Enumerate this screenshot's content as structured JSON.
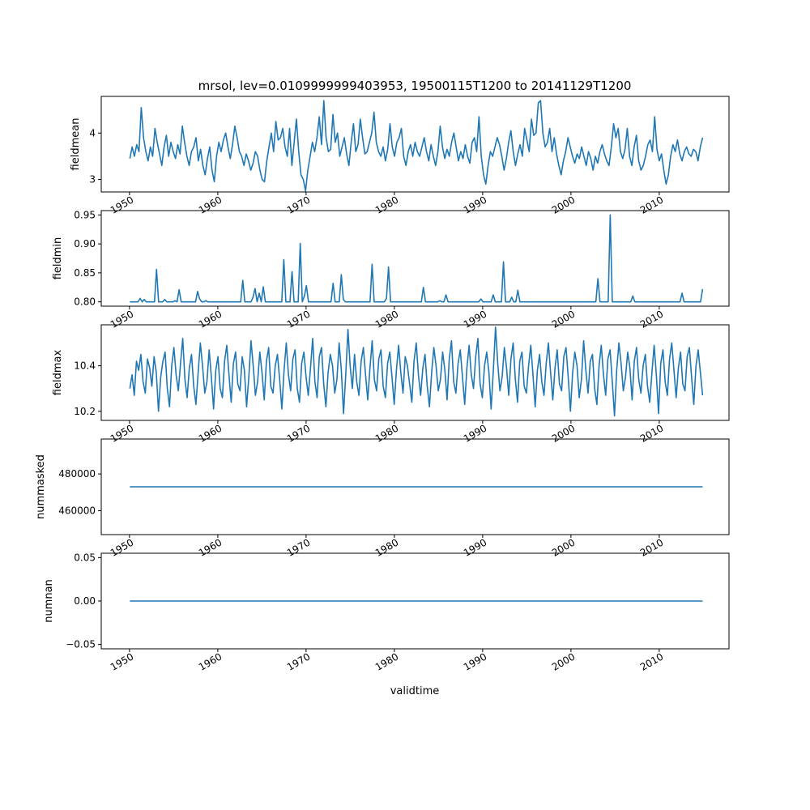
{
  "title": "mrsol, lev=0.0109999999403953, 19500115T1200 to 20141129T1200",
  "colors": {
    "series": "#1f77b4",
    "axes": "#000000",
    "background": "#ffffff"
  },
  "chart_data": [
    {
      "type": "line",
      "ylabel": "fieldmean",
      "xlim": [
        1946.8,
        2017.9
      ],
      "ylim": [
        2.73,
        4.79
      ],
      "x_ticks": [
        1950,
        1960,
        1970,
        1980,
        1990,
        2000,
        2010
      ],
      "x_tick_labels": [
        "1950",
        "1960",
        "1970",
        "1980",
        "1990",
        "2000",
        "2010"
      ],
      "y_ticks": [
        3,
        4
      ],
      "y_tick_labels": [
        "3",
        "4"
      ],
      "x_range": [
        1950.04,
        2014.91
      ],
      "series": [
        {
          "values": [
            3.45,
            3.7,
            3.5,
            3.75,
            3.6,
            4.55,
            3.9,
            3.6,
            3.4,
            3.7,
            3.5,
            4.1,
            3.8,
            3.55,
            3.3,
            3.7,
            3.95,
            3.5,
            3.8,
            3.6,
            3.45,
            3.75,
            3.55,
            4.15,
            3.8,
            3.5,
            3.3,
            3.6,
            3.7,
            3.9,
            3.4,
            3.65,
            3.3,
            3.1,
            3.45,
            3.7,
            3.2,
            2.95,
            3.5,
            3.8,
            3.6,
            3.85,
            4.0,
            3.7,
            3.45,
            3.75,
            4.15,
            3.9,
            3.6,
            3.5,
            3.3,
            3.55,
            3.4,
            3.2,
            3.35,
            3.6,
            3.5,
            3.2,
            3.0,
            2.95,
            3.4,
            3.7,
            4.0,
            3.6,
            4.25,
            3.85,
            3.9,
            4.1,
            3.7,
            3.5,
            4.1,
            3.3,
            3.8,
            4.3,
            3.6,
            3.1,
            3.0,
            2.75,
            3.2,
            3.5,
            3.8,
            3.6,
            3.9,
            4.35,
            3.75,
            4.7,
            3.9,
            3.6,
            3.65,
            4.4,
            3.8,
            4.0,
            3.5,
            3.7,
            3.9,
            3.55,
            3.3,
            3.8,
            4.2,
            3.6,
            3.75,
            4.3,
            3.9,
            3.55,
            3.6,
            3.8,
            4.0,
            4.45,
            3.8,
            3.6,
            3.5,
            3.7,
            3.4,
            3.65,
            4.2,
            3.7,
            3.5,
            3.8,
            3.9,
            4.1,
            3.5,
            3.3,
            3.6,
            3.75,
            3.5,
            3.8,
            3.6,
            3.5,
            3.7,
            3.9,
            3.6,
            3.4,
            3.75,
            3.5,
            3.3,
            3.6,
            4.15,
            3.7,
            3.45,
            3.65,
            3.5,
            3.8,
            4.0,
            3.7,
            3.4,
            3.6,
            3.45,
            3.75,
            3.5,
            3.35,
            3.8,
            3.9,
            3.6,
            4.35,
            3.5,
            3.1,
            2.9,
            3.3,
            3.6,
            3.5,
            3.7,
            3.9,
            3.75,
            3.5,
            3.2,
            3.45,
            3.8,
            4.05,
            3.6,
            3.3,
            3.55,
            3.75,
            3.5,
            4.1,
            3.85,
            3.6,
            4.3,
            3.95,
            4.0,
            4.65,
            4.7,
            4.0,
            3.7,
            3.8,
            4.1,
            3.6,
            3.9,
            3.55,
            3.3,
            3.1,
            3.4,
            3.6,
            3.9,
            3.7,
            3.5,
            3.35,
            3.55,
            3.45,
            3.7,
            3.5,
            3.3,
            3.6,
            3.45,
            3.2,
            3.5,
            3.35,
            3.6,
            3.75,
            3.55,
            3.4,
            3.3,
            3.7,
            4.2,
            3.9,
            4.1,
            3.6,
            3.45,
            3.65,
            4.1,
            3.5,
            3.3,
            3.7,
            3.95,
            3.4,
            3.2,
            3.3,
            3.5,
            3.75,
            3.85,
            3.6,
            4.35,
            3.65,
            3.4,
            3.55,
            3.2,
            2.9,
            3.1,
            3.5,
            3.75,
            3.6,
            3.85,
            3.55,
            3.4,
            3.6,
            3.7,
            3.55,
            3.5,
            3.65,
            3.6,
            3.4,
            3.7,
            3.9
          ]
        }
      ]
    },
    {
      "type": "line",
      "ylabel": "fieldmin",
      "xlim": [
        1946.8,
        2017.9
      ],
      "ylim": [
        0.7925,
        0.9575
      ],
      "x_ticks": [
        1950,
        1960,
        1970,
        1980,
        1990,
        2000,
        2010
      ],
      "x_tick_labels": [
        "1950",
        "1960",
        "1970",
        "1980",
        "1990",
        "2000",
        "2010"
      ],
      "y_ticks": [
        0.8,
        0.85,
        0.9,
        0.95
      ],
      "y_tick_labels": [
        "0.80",
        "0.85",
        "0.90",
        "0.95"
      ],
      "x_range": [
        1950.04,
        2014.91
      ],
      "series": [
        {
          "values": [
            0.8,
            0.8,
            0.8,
            0.8,
            0.8,
            0.806,
            0.8,
            0.804,
            0.8,
            0.8,
            0.8,
            0.8,
            0.8,
            0.856,
            0.8,
            0.8,
            0.8,
            0.804,
            0.8,
            0.8,
            0.8,
            0.8,
            0.802,
            0.8,
            0.821,
            0.8,
            0.8,
            0.8,
            0.8,
            0.8,
            0.8,
            0.8,
            0.8,
            0.818,
            0.805,
            0.8,
            0.8,
            0.802,
            0.8,
            0.8,
            0.8,
            0.8,
            0.8,
            0.8,
            0.8,
            0.8,
            0.8,
            0.8,
            0.8,
            0.8,
            0.8,
            0.8,
            0.8,
            0.8,
            0.8,
            0.837,
            0.8,
            0.8,
            0.8,
            0.8,
            0.808,
            0.823,
            0.8,
            0.815,
            0.8,
            0.826,
            0.8,
            0.8,
            0.8,
            0.8,
            0.8,
            0.8,
            0.8,
            0.8,
            0.8,
            0.873,
            0.8,
            0.8,
            0.8,
            0.852,
            0.8,
            0.8,
            0.8,
            0.901,
            0.8,
            0.81,
            0.828,
            0.8,
            0.8,
            0.8,
            0.8,
            0.8,
            0.8,
            0.8,
            0.8,
            0.8,
            0.8,
            0.8,
            0.8,
            0.832,
            0.8,
            0.8,
            0.8,
            0.847,
            0.804,
            0.8,
            0.8,
            0.8,
            0.8,
            0.8,
            0.8,
            0.8,
            0.8,
            0.8,
            0.8,
            0.8,
            0.8,
            0.8,
            0.865,
            0.8,
            0.8,
            0.8,
            0.8,
            0.8,
            0.8,
            0.806,
            0.86,
            0.8,
            0.8,
            0.8,
            0.8,
            0.8,
            0.8,
            0.8,
            0.8,
            0.8,
            0.8,
            0.8,
            0.8,
            0.8,
            0.8,
            0.8,
            0.8,
            0.825,
            0.8,
            0.8,
            0.8,
            0.8,
            0.8,
            0.8,
            0.8,
            0.802,
            0.8,
            0.8,
            0.812,
            0.8,
            0.8,
            0.8,
            0.8,
            0.8,
            0.8,
            0.8,
            0.8,
            0.8,
            0.8,
            0.8,
            0.8,
            0.8,
            0.8,
            0.8,
            0.8,
            0.805,
            0.8,
            0.8,
            0.8,
            0.8,
            0.8,
            0.812,
            0.8,
            0.8,
            0.8,
            0.8,
            0.869,
            0.8,
            0.8,
            0.8,
            0.808,
            0.8,
            0.8,
            0.82,
            0.8,
            0.8,
            0.8,
            0.8,
            0.8,
            0.8,
            0.8,
            0.8,
            0.8,
            0.8,
            0.8,
            0.8,
            0.8,
            0.8,
            0.8,
            0.8,
            0.8,
            0.8,
            0.8,
            0.8,
            0.8,
            0.8,
            0.8,
            0.8,
            0.8,
            0.8,
            0.8,
            0.8,
            0.8,
            0.8,
            0.8,
            0.8,
            0.8,
            0.8,
            0.8,
            0.8,
            0.8,
            0.8,
            0.84,
            0.8,
            0.8,
            0.8,
            0.8,
            0.8,
            0.95,
            0.8,
            0.8,
            0.8,
            0.8,
            0.8,
            0.8,
            0.8,
            0.8,
            0.8,
            0.8,
            0.81,
            0.8,
            0.8,
            0.8,
            0.8,
            0.8,
            0.8,
            0.8,
            0.8,
            0.8,
            0.8,
            0.8,
            0.8,
            0.8,
            0.8,
            0.8,
            0.8,
            0.8,
            0.8,
            0.8,
            0.8,
            0.8,
            0.8,
            0.8,
            0.815,
            0.8,
            0.8,
            0.8,
            0.8,
            0.8,
            0.8,
            0.8,
            0.8,
            0.8,
            0.822
          ]
        }
      ]
    },
    {
      "type": "line",
      "ylabel": "fieldmax",
      "xlim": [
        1946.8,
        2017.9
      ],
      "ylim": [
        10.16,
        10.58
      ],
      "x_ticks": [
        1950,
        1960,
        1970,
        1980,
        1990,
        2000,
        2010
      ],
      "x_tick_labels": [
        "1950",
        "1960",
        "1970",
        "1980",
        "1990",
        "2000",
        "2010"
      ],
      "y_ticks": [
        10.2,
        10.4
      ],
      "y_tick_labels": [
        "10.2",
        "10.4"
      ],
      "x_range": [
        1950.04,
        2014.91
      ],
      "series": [
        {
          "values": [
            10.3,
            10.36,
            10.27,
            10.42,
            10.38,
            10.45,
            10.33,
            10.28,
            10.43,
            10.39,
            10.31,
            10.44,
            10.37,
            10.2,
            10.35,
            10.42,
            10.46,
            10.3,
            10.22,
            10.4,
            10.48,
            10.36,
            10.29,
            10.41,
            10.52,
            10.34,
            10.26,
            10.39,
            10.45,
            10.31,
            10.23,
            10.37,
            10.5,
            10.4,
            10.28,
            10.33,
            10.47,
            10.35,
            10.21,
            10.38,
            10.44,
            10.3,
            10.26,
            10.42,
            10.49,
            10.36,
            10.24,
            10.41,
            10.46,
            10.32,
            10.29,
            10.44,
            10.38,
            10.22,
            10.35,
            10.51,
            10.4,
            10.27,
            10.33,
            10.46,
            10.37,
            10.25,
            10.42,
            10.48,
            10.31,
            10.28,
            10.4,
            10.45,
            10.34,
            10.21,
            10.38,
            10.5,
            10.36,
            10.29,
            10.43,
            10.47,
            10.3,
            10.24,
            10.41,
            10.46,
            10.35,
            10.27,
            10.39,
            10.52,
            10.33,
            10.26,
            10.44,
            10.48,
            10.32,
            10.22,
            10.37,
            10.45,
            10.4,
            10.28,
            10.34,
            10.5,
            10.38,
            10.19,
            10.36,
            10.56,
            10.4,
            10.3,
            10.45,
            10.33,
            10.27,
            10.42,
            10.48,
            10.36,
            10.25,
            10.39,
            10.51,
            10.34,
            10.29,
            10.43,
            10.47,
            10.31,
            10.26,
            10.41,
            10.46,
            10.35,
            10.23,
            10.38,
            10.49,
            10.37,
            10.28,
            10.44,
            10.4,
            10.32,
            10.24,
            10.42,
            10.5,
            10.36,
            10.27,
            10.39,
            10.45,
            10.31,
            10.22,
            10.37,
            10.48,
            10.4,
            10.29,
            10.34,
            10.46,
            10.38,
            10.25,
            10.43,
            10.51,
            10.33,
            10.28,
            10.41,
            10.47,
            10.35,
            10.23,
            10.39,
            10.49,
            10.36,
            10.3,
            10.44,
            10.52,
            10.32,
            10.26,
            10.4,
            10.46,
            10.37,
            10.21,
            10.38,
            10.57,
            10.41,
            10.29,
            10.35,
            10.48,
            10.39,
            10.27,
            10.43,
            10.5,
            10.34,
            10.24,
            10.42,
            10.46,
            10.31,
            10.28,
            10.4,
            10.49,
            10.36,
            10.22,
            10.38,
            10.45,
            10.33,
            10.27,
            10.41,
            10.5,
            10.37,
            10.25,
            10.39,
            10.47,
            10.32,
            10.29,
            10.44,
            10.48,
            10.35,
            10.2,
            10.37,
            10.46,
            10.4,
            10.26,
            10.34,
            10.51,
            10.38,
            10.28,
            10.42,
            10.45,
            10.3,
            10.23,
            10.4,
            10.49,
            10.36,
            10.27,
            10.43,
            10.47,
            10.33,
            10.18,
            10.38,
            10.5,
            10.41,
            10.29,
            10.35,
            10.46,
            10.39,
            10.25,
            10.42,
            10.48,
            10.34,
            10.28,
            10.4,
            10.45,
            10.31,
            10.24,
            10.37,
            10.49,
            10.36,
            10.19,
            10.41,
            10.47,
            10.33,
            10.27,
            10.43,
            10.5,
            10.38,
            10.26,
            10.39,
            10.46,
            10.32,
            10.29,
            10.44,
            10.48,
            10.35,
            10.23,
            10.4,
            10.47,
            10.37,
            10.27
          ]
        }
      ]
    },
    {
      "type": "line",
      "ylabel": "nummasked",
      "xlim": [
        1946.8,
        2017.9
      ],
      "ylim": [
        447000,
        499000
      ],
      "x_ticks": [
        1950,
        1960,
        1970,
        1980,
        1990,
        2000,
        2010
      ],
      "x_tick_labels": [
        "1950",
        "1960",
        "1970",
        "1980",
        "1990",
        "2000",
        "2010"
      ],
      "y_ticks": [
        460000,
        480000
      ],
      "y_tick_labels": [
        "460000",
        "480000"
      ],
      "x_range": [
        1950.04,
        2014.91
      ],
      "series": [
        {
          "values": [
            473000,
            473000
          ]
        }
      ]
    },
    {
      "type": "line",
      "ylabel": "numnan",
      "xlabel": "validtime",
      "xlim": [
        1946.8,
        2017.9
      ],
      "ylim": [
        -0.055,
        0.055
      ],
      "x_ticks": [
        1950,
        1960,
        1970,
        1980,
        1990,
        2000,
        2010
      ],
      "x_tick_labels": [
        "1950",
        "1960",
        "1970",
        "1980",
        "1990",
        "2000",
        "2010"
      ],
      "y_ticks": [
        -0.05,
        0.0,
        0.05
      ],
      "y_tick_labels": [
        "−0.05",
        "0.00",
        "0.05"
      ],
      "x_range": [
        1950.04,
        2014.91
      ],
      "series": [
        {
          "values": [
            0,
            0
          ]
        }
      ]
    }
  ]
}
